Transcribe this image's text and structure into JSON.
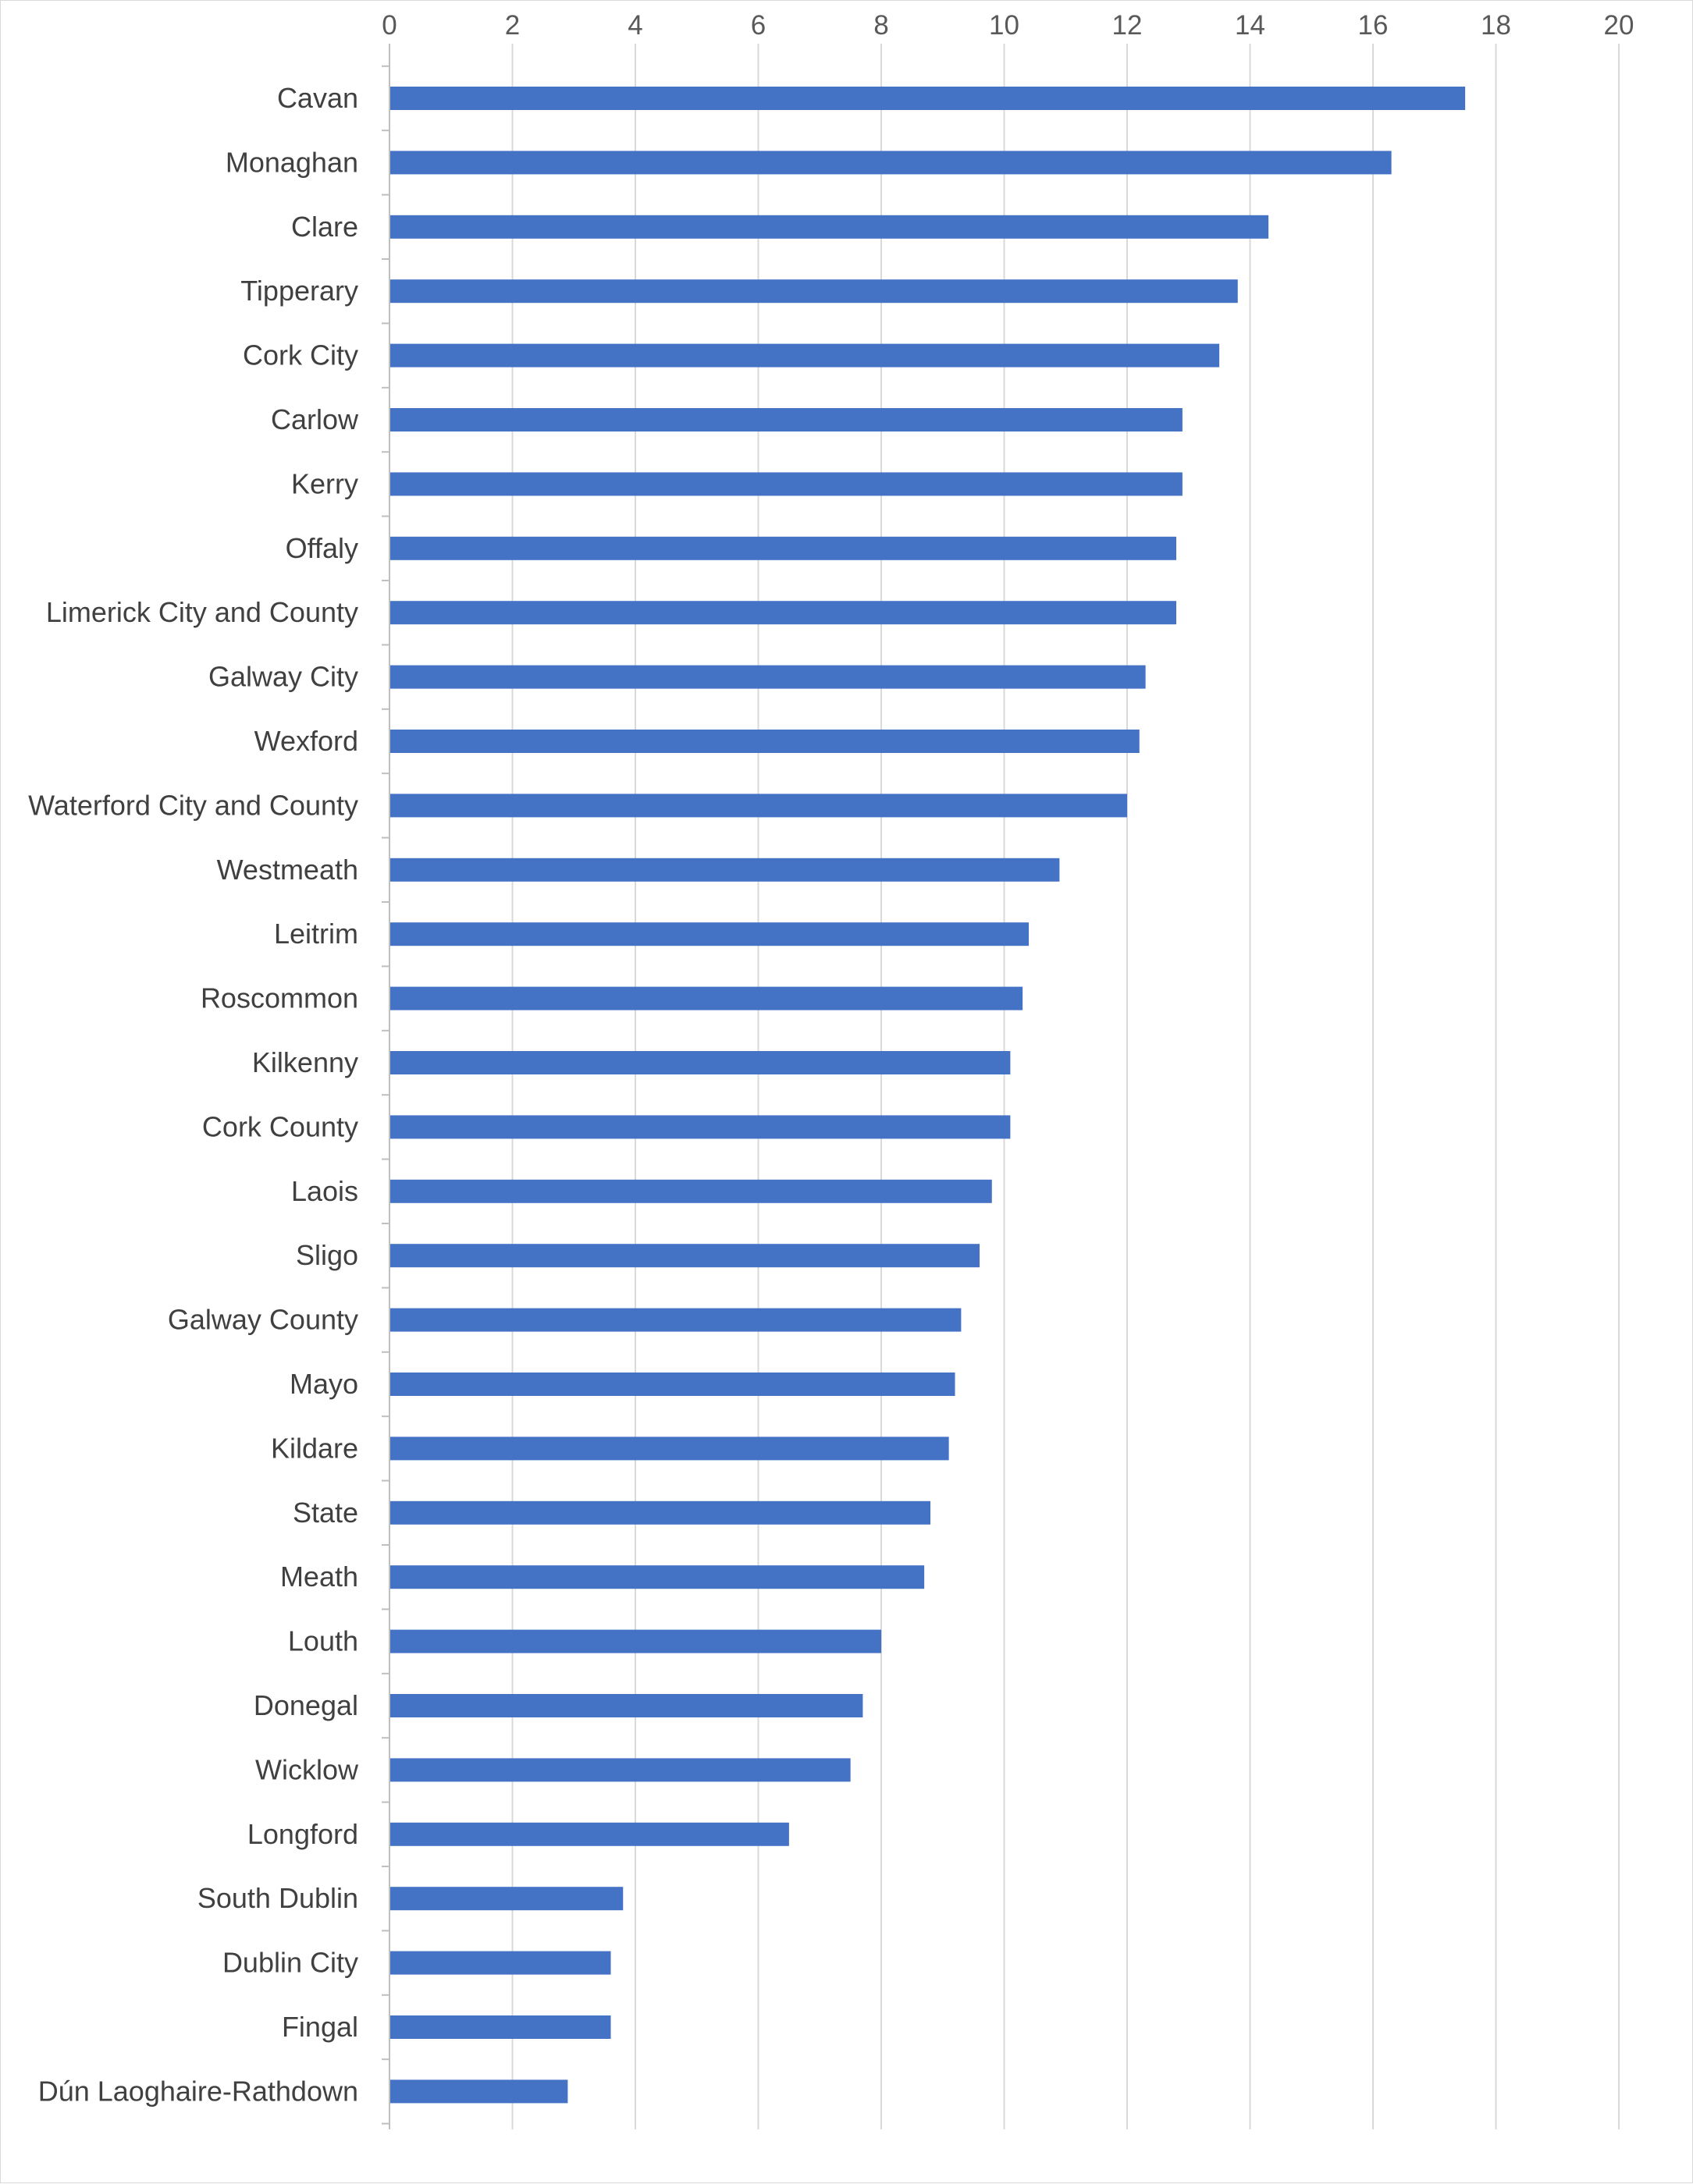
{
  "chart_data": {
    "type": "bar",
    "orientation": "horizontal",
    "title": "",
    "xlabel": "",
    "ylabel": "",
    "xlim": [
      0,
      20
    ],
    "ticks": [
      "0",
      "2",
      "4",
      "6",
      "8",
      "10",
      "12",
      "14",
      "16",
      "18",
      "20"
    ],
    "tick_values": [
      0,
      2,
      4,
      6,
      8,
      10,
      12,
      14,
      16,
      18,
      20
    ],
    "grid": true,
    "legend": "none",
    "bar_color": "#4472c4",
    "categories": [
      "Cavan",
      "Monaghan",
      "Clare",
      "Tipperary",
      "Cork City",
      "Carlow",
      "Kerry",
      "Offaly",
      "Limerick City and County",
      "Galway City",
      "Wexford",
      "Waterford City and County",
      "Westmeath",
      "Leitrim",
      "Roscommon",
      "Kilkenny",
      "Cork County",
      "Laois",
      "Sligo",
      "Galway County",
      "Mayo",
      "Kildare",
      "State",
      "Meath",
      "Louth",
      "Donegal",
      "Wicklow",
      "Longford",
      "South Dublin",
      "Dublin City",
      "Fingal",
      "Dún Laoghaire-Rathdown"
    ],
    "values": [
      17.5,
      16.3,
      14.3,
      13.8,
      13.5,
      12.9,
      12.9,
      12.8,
      12.8,
      12.3,
      12.2,
      12.0,
      10.9,
      10.4,
      10.3,
      10.1,
      10.1,
      9.8,
      9.6,
      9.3,
      9.2,
      9.1,
      8.8,
      8.7,
      8.0,
      7.7,
      7.5,
      6.5,
      3.8,
      3.6,
      3.6,
      2.9
    ]
  }
}
